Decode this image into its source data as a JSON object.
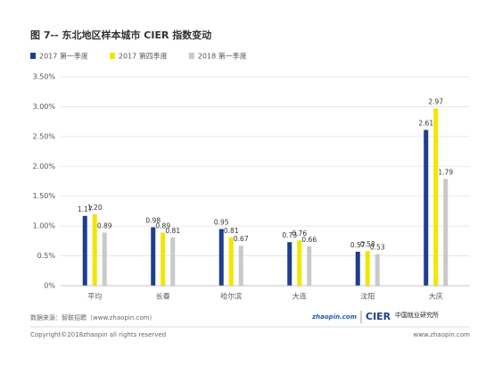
{
  "chart_data": {
    "type": "bar",
    "title": "图 7-- 东北地区样本城市 CIER 指数变动",
    "categories": [
      "平均",
      "长春",
      "哈尔滨",
      "大连",
      "沈阳",
      "大庆"
    ],
    "series": [
      {
        "name": "2017 第一季度",
        "color": "#1d3d8f",
        "values": [
          1.17,
          0.98,
          0.95,
          0.73,
          0.57,
          2.61
        ],
        "value_labels": [
          "1.17",
          "0.98",
          "0.95",
          "0.73",
          "0.57",
          "2.61"
        ]
      },
      {
        "name": "2017 第四季度",
        "color": "#f3e600",
        "values": [
          1.2,
          0.89,
          0.81,
          0.76,
          0.58,
          2.97
        ],
        "value_labels": [
          "1.20",
          "0.89",
          "0.81",
          "0.76",
          "0.58",
          "2.97"
        ]
      },
      {
        "name": "2018 第一季度",
        "color": "#c9c9c9",
        "values": [
          0.89,
          0.81,
          0.67,
          0.66,
          0.53,
          1.79
        ],
        "value_labels": [
          "0.89",
          "0.81",
          "0.67",
          "0.66",
          "0.53",
          "1.79"
        ]
      }
    ],
    "ylim": [
      0,
      3.5
    ],
    "yticks": [
      {
        "value": 0,
        "label": "0%"
      },
      {
        "value": 0.5,
        "label": "0.5%"
      },
      {
        "value": 1,
        "label": "1.00%"
      },
      {
        "value": 1.5,
        "label": "1.50%"
      },
      {
        "value": 2,
        "label": "2.00%"
      },
      {
        "value": 2.5,
        "label": "2.50%"
      },
      {
        "value": 3,
        "label": "3.00%"
      },
      {
        "value": 3.5,
        "label": "3.50%"
      }
    ],
    "grid": true,
    "legend": "top-left"
  },
  "footer": {
    "source": "数据来源：智联招聘（www.zhaopin.com）",
    "logo_left": "zhaopin.com",
    "logo_cier": "CIER",
    "logo_cier_cn": "中国就业研究所",
    "copyright": "Copyright©2018zhaopin all rights reserved",
    "website": "www.zhaopin.com"
  }
}
